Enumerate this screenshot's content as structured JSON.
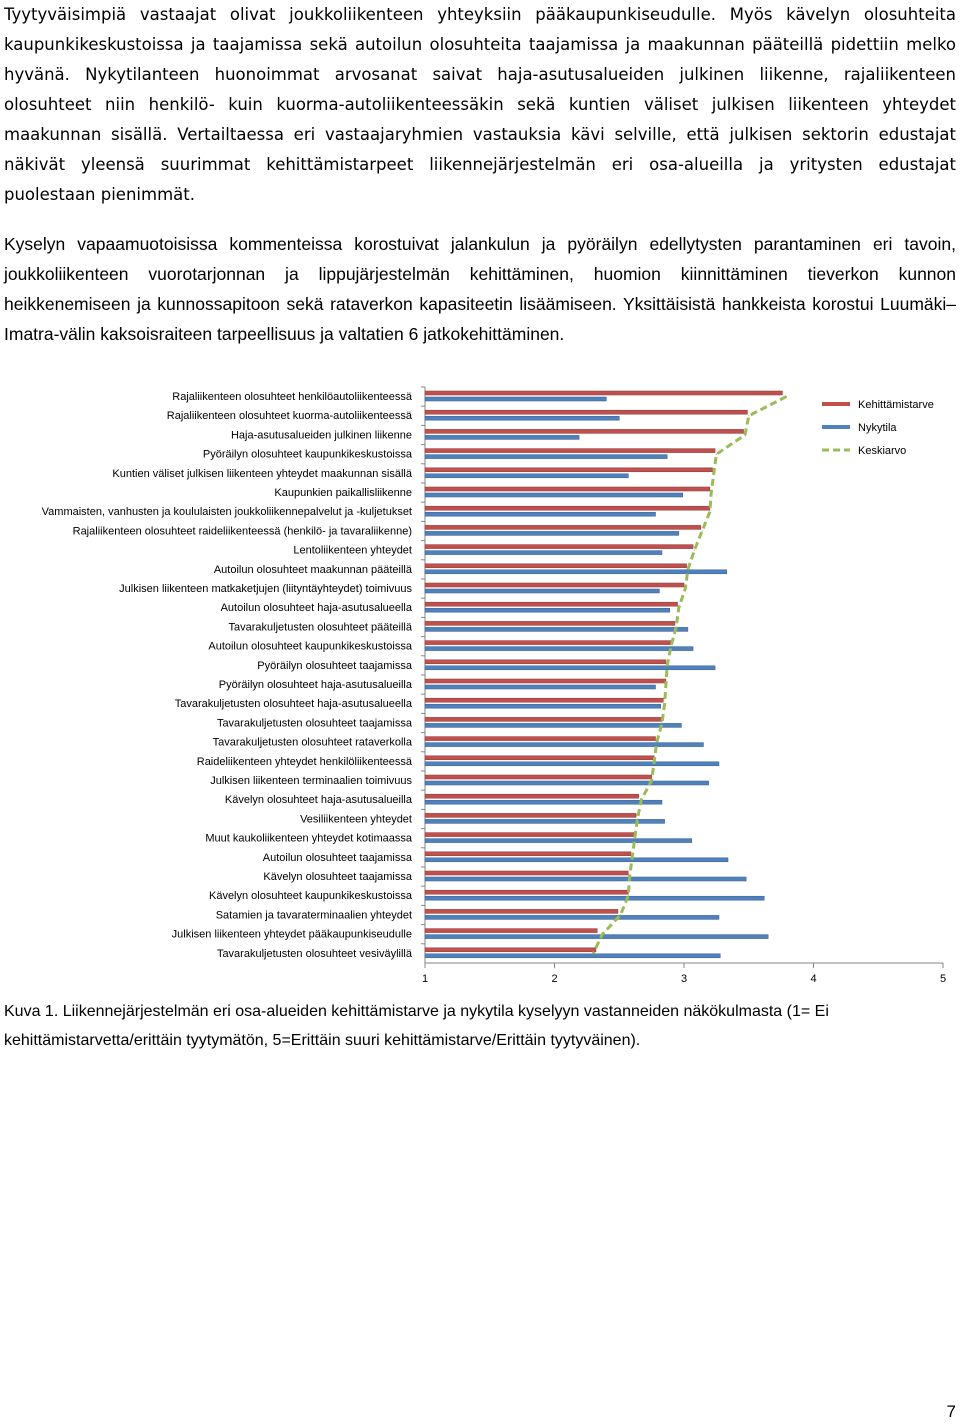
{
  "paragraphs": {
    "p1": "Tyytyväisimpiä vastaajat olivat joukkoliikenteen yhteyksiin pääkaupunkiseudulle. Myös kävelyn olosuhteita kaupunkikeskustoissa ja taajamissa sekä autoilun olosuhteita taajamissa ja maakunnan pääteillä pidettiin melko hyvänä. Nykytilanteen huonoimmat arvosanat saivat haja-asutusalueiden julkinen liikenne, rajaliikenteen olosuhteet niin henkilö- kuin kuorma-autoliikenteessäkin sekä kuntien väliset julkisen liikenteen yhteydet maakunnan sisällä. Vertailtaessa eri vastaajaryhmien vastauksia kävi selville, että julkisen sektorin edustajat näkivät yleensä suurimmat kehittämistarpeet liikennejärjestelmän eri osa-alueilla ja yritysten edustajat puolestaan pienimmät.",
    "p2": "Kyselyn vapaamuotoisissa kommenteissa korostuivat jalankulun ja pyöräilyn edellytysten parantaminen eri tavoin, joukkoliikenteen vuorotarjonnan ja lippujärjestelmän kehittäminen, huomion kiinnittäminen tieverkon kunnon heikkenemiseen ja kunnossapitoon sekä rataverkon kapasiteetin lisäämiseen. Yksittäisistä hankkeista korostui Luumäki–Imatra-välin kaksoisraiteen tarpeellisuus ja valtatien 6 jatkokehittäminen."
  },
  "caption": "Kuva 1. Liikennejärjestelmän eri osa-alueiden kehittämistarve ja nykytila kyselyyn vastanneiden näkökulmasta (1= Ei kehittämistarvetta/erittäin tyytymätön, 5=Erittäin suuri kehittämistarve/Erittäin tyytyväinen).",
  "page_number": "7",
  "colors": {
    "kehittamistarve": "#c0504d",
    "nykytila": "#4f81bd",
    "keskiarvo": "#9bbb59"
  },
  "chart_data": {
    "type": "bar",
    "orientation": "horizontal",
    "categories": [
      "Rajaliikenteen olosuhteet henkilöautoliikenteessä",
      "Rajaliikenteen olosuhteet kuorma-autoliikenteessä",
      "Haja-asutusalueiden julkinen liikenne",
      "Pyöräilyn olosuhteet kaupunkikeskustoissa",
      "Kuntien väliset julkisen liikenteen yhteydet maakunnan sisällä",
      "Kaupunkien paikallisliikenne",
      "Vammaisten, vanhusten ja koululaisten joukkoliikennepalvelut ja -kuljetukset",
      "Rajaliikenteen olosuhteet raideliikenteessä (henkilö- ja tavaraliikenne)",
      "Lentoliikenteen yhteydet",
      "Autoilun olosuhteet maakunnan pääteillä",
      "Julkisen liikenteen matkaketjujen (liityntäyhteydet) toimivuus",
      "Autoilun olosuhteet haja-asutusalueella",
      "Tavarakuljetusten olosuhteet pääteillä",
      "Autoilun olosuhteet kaupunkikeskustoissa",
      "Pyöräilyn olosuhteet taajamissa",
      "Pyöräilyn olosuhteet haja-asutusalueilla",
      "Tavarakuljetusten olosuhteet haja-asutusalueella",
      "Tavarakuljetusten olosuhteet taajamissa",
      "Tavarakuljetusten olosuhteet rataverkolla",
      "Raideliikenteen yhteydet henkilöliikenteessä",
      "Julkisen liikenteen terminaalien toimivuus",
      "Kävelyn olosuhteet haja-asutusalueilla",
      "Vesiliikenteen yhteydet",
      "Muut kaukoliikenteen yhteydet kotimaassa",
      "Autoilun olosuhteet taajamissa",
      "Kävelyn olosuhteet taajamissa",
      "Kävelyn olosuhteet kaupunkikeskustoissa",
      "Satamien ja tavaraterminaalien yhteydet",
      "Julkisen liikenteen yhteydet pääkaupunkiseudulle",
      "Tavarakuljetusten olosuhteet vesiväylillä"
    ],
    "series": [
      {
        "name": "Kehittämistarve",
        "values": [
          3.76,
          3.49,
          3.46,
          3.24,
          3.22,
          3.2,
          3.2,
          3.13,
          3.07,
          3.02,
          3.0,
          2.95,
          2.93,
          2.9,
          2.86,
          2.86,
          2.84,
          2.83,
          2.78,
          2.77,
          2.75,
          2.65,
          2.63,
          2.62,
          2.59,
          2.57,
          2.57,
          2.49,
          2.33,
          2.32
        ]
      },
      {
        "name": "Nykytila",
        "values": [
          2.4,
          2.5,
          2.19,
          2.87,
          2.57,
          2.99,
          2.78,
          2.96,
          2.83,
          3.33,
          2.81,
          2.89,
          3.03,
          3.07,
          3.24,
          2.78,
          2.82,
          2.98,
          3.15,
          3.27,
          3.19,
          2.83,
          2.85,
          3.06,
          3.34,
          3.48,
          3.62,
          3.27,
          3.65,
          3.28
        ]
      },
      {
        "name": "Keskiarvo",
        "values": [
          3.79,
          3.5,
          3.47,
          3.25,
          3.23,
          3.21,
          3.2,
          3.14,
          3.08,
          3.03,
          3.01,
          2.96,
          2.94,
          2.9,
          2.87,
          2.86,
          2.85,
          2.83,
          2.79,
          2.77,
          2.75,
          2.67,
          2.64,
          2.62,
          2.6,
          2.58,
          2.57,
          2.51,
          2.37,
          2.3
        ]
      }
    ],
    "xlim": [
      1,
      5
    ],
    "x_ticks": [
      "1",
      "2",
      "3",
      "4",
      "5"
    ],
    "legend_position": "right",
    "grid": false
  }
}
